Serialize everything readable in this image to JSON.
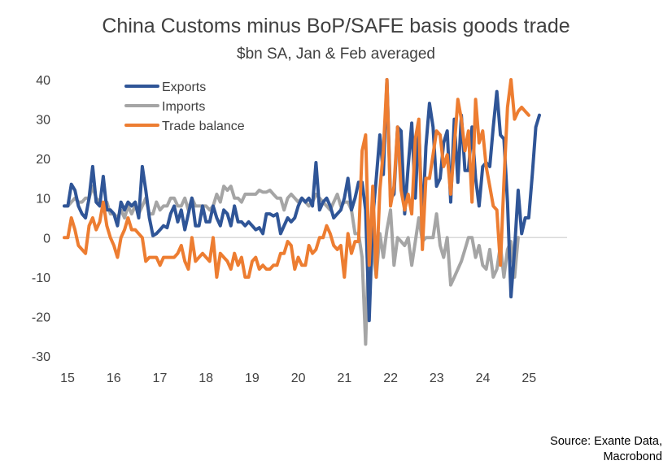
{
  "chart_data": {
    "type": "line",
    "title": "China Customs minus BoP/SAFE basis goods trade",
    "subtitle": "$bn SA, Jan & Feb averaged",
    "xlabel": "",
    "ylabel": "",
    "ylim": [
      -30,
      40
    ],
    "yticks": [
      -30,
      -20,
      -10,
      0,
      10,
      20,
      30,
      40
    ],
    "xlim": [
      15,
      26
    ],
    "xticks": [
      15,
      16,
      17,
      18,
      19,
      20,
      21,
      22,
      23,
      24,
      25
    ],
    "grid": false,
    "legend_position": "top-left",
    "series": [
      {
        "name": "Exports",
        "color": "#2F5597",
        "values": [
          8,
          8,
          13.5,
          12,
          8,
          6,
          5,
          10,
          18,
          9,
          8,
          15.5,
          7,
          7,
          6,
          3,
          9,
          7,
          9,
          8,
          9,
          5,
          18,
          12,
          5,
          0.5,
          1,
          2,
          3,
          2.5,
          6,
          8,
          4,
          7,
          2,
          6,
          10,
          3,
          3,
          8,
          4,
          4,
          8,
          5,
          3,
          7,
          6,
          3,
          8,
          4,
          4,
          3,
          4,
          3,
          2,
          2.5,
          1,
          6,
          6,
          5.5,
          6,
          1,
          3,
          5,
          4,
          5,
          8,
          10,
          9,
          10,
          8,
          19,
          7,
          9,
          10,
          8,
          5,
          6,
          7,
          10,
          15,
          7,
          10,
          14,
          14,
          7,
          -21,
          5,
          15,
          26,
          16,
          40,
          10,
          11,
          28,
          27,
          6,
          18,
          29,
          10,
          28,
          3,
          23,
          34,
          28,
          13,
          15,
          24,
          27,
          9,
          30,
          14,
          31,
          17,
          17,
          28,
          15,
          8,
          18,
          19,
          18,
          28,
          37,
          26,
          25,
          9,
          -15,
          -3,
          12,
          1,
          5,
          5,
          16,
          28,
          31
        ]
      },
      {
        "name": "Imports",
        "color": "#A5A5A5",
        "values": [
          8,
          8,
          9,
          10,
          9,
          9,
          10,
          10,
          13,
          10,
          9,
          8,
          9,
          6,
          6,
          5,
          7,
          5,
          8,
          6,
          8,
          6,
          8,
          10,
          6,
          6,
          9,
          7,
          8,
          8,
          10,
          10,
          8,
          8,
          10,
          7,
          10,
          8,
          8,
          8,
          8,
          7,
          8,
          11,
          9,
          13,
          12,
          13,
          10,
          10,
          9,
          11,
          11,
          11,
          11,
          12,
          11.5,
          11.5,
          12,
          11,
          10,
          10,
          7,
          10,
          11,
          10,
          9,
          10,
          9,
          8,
          9,
          11,
          10,
          9,
          8,
          7,
          9,
          11,
          8,
          9,
          9,
          7,
          1,
          1,
          -5,
          -27,
          3,
          -3,
          -10,
          1,
          -5,
          2,
          7,
          -7,
          0,
          -1,
          -2,
          0,
          -7,
          -1,
          5,
          -1,
          0,
          0,
          0,
          6,
          -2,
          -5,
          0,
          -12,
          -10,
          -8,
          -6,
          -3,
          0,
          0,
          -5,
          -2,
          -7,
          -8,
          -3,
          -10,
          -8,
          -2,
          -10,
          -3,
          -1,
          -10,
          0
        ]
      },
      {
        "name": "Trade balance",
        "color": "#ED7D31",
        "values": [
          0,
          0,
          5,
          2,
          -2,
          -3,
          -4,
          3,
          5,
          2,
          4,
          9,
          3,
          0,
          -2,
          -5,
          0,
          2,
          5,
          2,
          2,
          1,
          0,
          -6,
          -5,
          -5,
          -5,
          -7,
          -5,
          -5,
          -5,
          -5,
          -4,
          -2,
          -6,
          -8,
          0,
          -6,
          -5,
          -4,
          -5,
          -6,
          0,
          -10,
          -4,
          -5,
          -6,
          -8,
          -4,
          -7,
          -5,
          -10,
          -10,
          -6,
          -5,
          -8,
          -7,
          -8,
          -8,
          -7,
          -7,
          -4,
          -4,
          -1,
          -2,
          -8,
          -5,
          -7,
          -7,
          -2,
          -4,
          -3,
          0,
          0,
          3,
          1,
          -2,
          -3,
          -2,
          -10,
          1,
          -4,
          -1,
          -1,
          22,
          26,
          -7,
          13,
          -10,
          12,
          22,
          40,
          8,
          13,
          28,
          12,
          7,
          11,
          6,
          25,
          30,
          -3,
          15,
          15,
          21,
          27,
          26,
          18,
          21,
          11,
          23,
          35,
          30,
          22,
          27,
          9,
          35,
          24,
          27,
          18,
          13,
          8,
          7,
          -7,
          14,
          33,
          40,
          30,
          32,
          33,
          32,
          31
        ]
      }
    ],
    "source": [
      "Source: Exante Data,",
      "Macrobond"
    ]
  }
}
